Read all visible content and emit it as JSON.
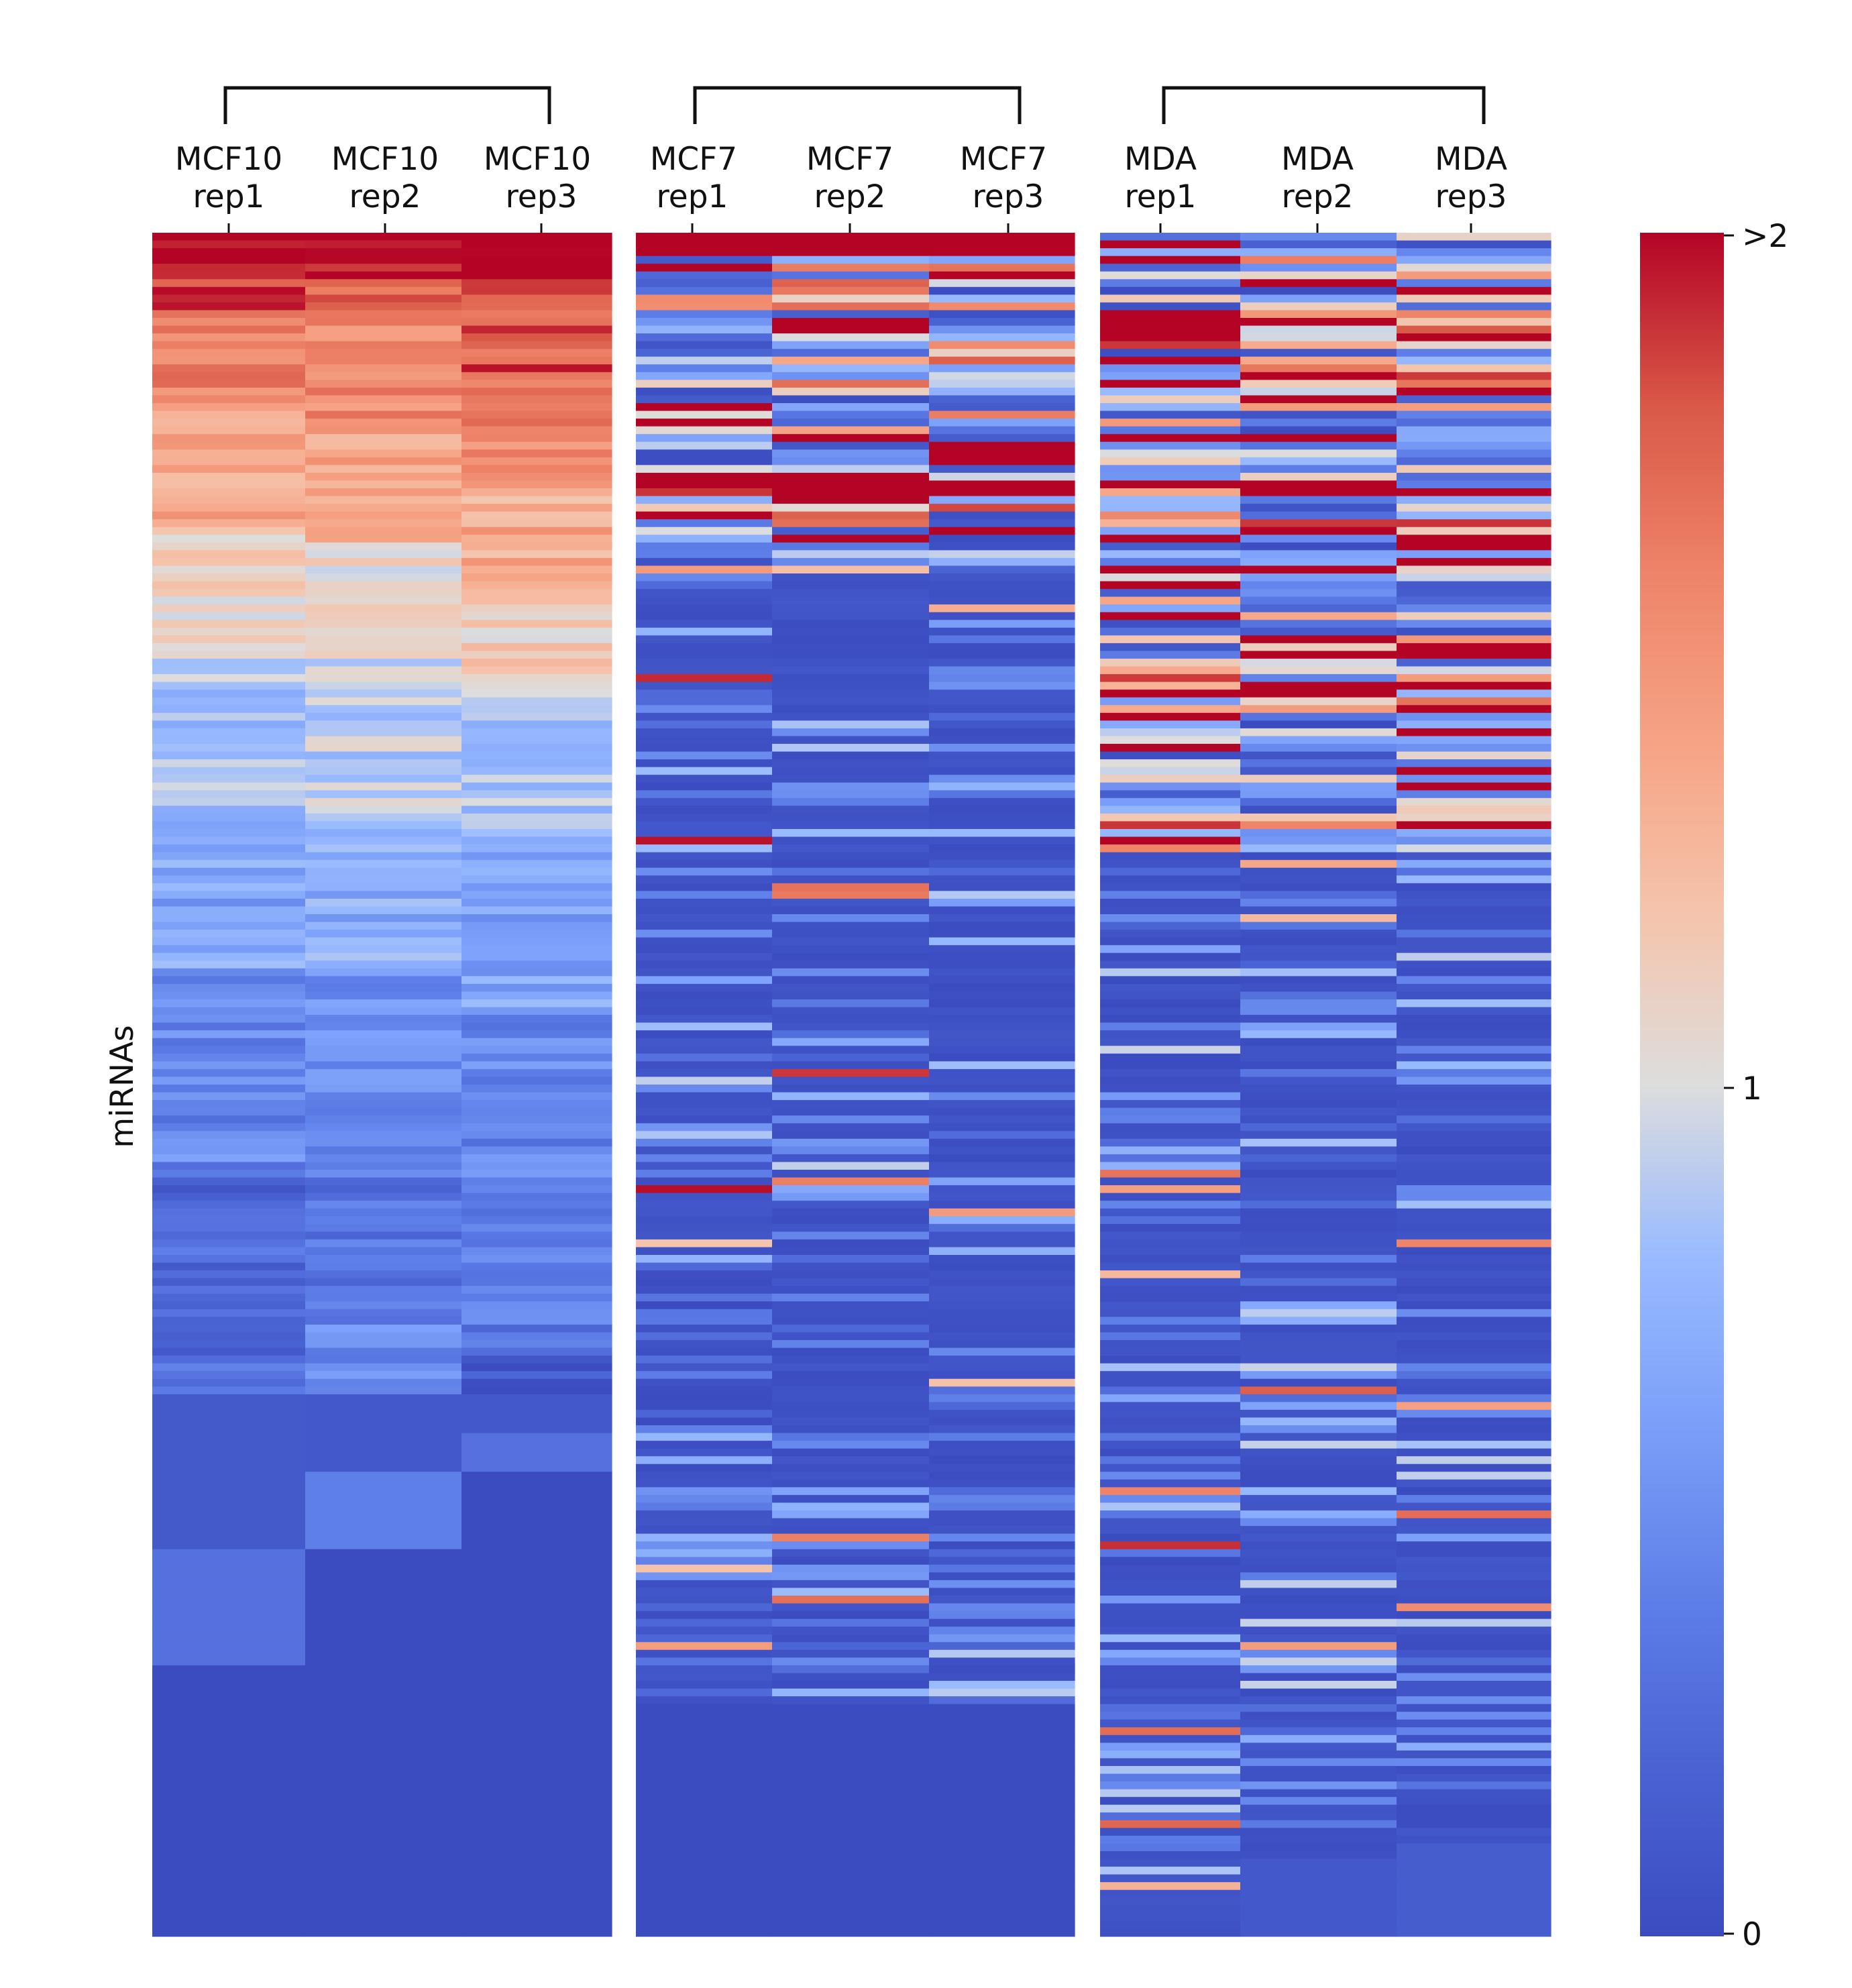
{
  "chart_data": {
    "type": "heatmap",
    "ylabel": "miRNAs",
    "xlabel": "",
    "row_count": 220,
    "groups": [
      {
        "name": "MCF10",
        "columns": [
          {
            "line1": "MCF10",
            "line2": "rep1"
          },
          {
            "line1": "MCF10",
            "line2": "rep2"
          },
          {
            "line1": "MCF10",
            "line2": "rep3"
          }
        ]
      },
      {
        "name": "MCF7",
        "columns": [
          {
            "line1": "MCF7",
            "line2": "rep1"
          },
          {
            "line1": "MCF7",
            "line2": "rep2"
          },
          {
            "line1": "MCF7",
            "line2": "rep3"
          }
        ]
      },
      {
        "name": "MDA",
        "columns": [
          {
            "line1": "MDA",
            "line2": "rep1"
          },
          {
            "line1": "MDA",
            "line2": "rep2"
          },
          {
            "line1": "MDA",
            "line2": "rep3"
          }
        ]
      }
    ],
    "colorbar": {
      "colormap": "coolwarm",
      "vmin": 0,
      "vmax": 2,
      "ticks": [
        {
          "value": 2,
          "label": ">2"
        },
        {
          "value": 1,
          "label": "1"
        },
        {
          "value": 0,
          "label": "0"
        }
      ]
    },
    "value_profiles": {
      "note": "expression values by row index (0 = top), read approximately from the figure; each entry: [row_start, row_end_exclusive, value]",
      "MCF10_rep1": [
        [
          0,
          4,
          2.0
        ],
        [
          4,
          10,
          1.85
        ],
        [
          10,
          22,
          1.6
        ],
        [
          22,
          38,
          1.35
        ],
        [
          38,
          55,
          1.1
        ],
        [
          55,
          75,
          0.85
        ],
        [
          75,
          95,
          0.65
        ],
        [
          95,
          120,
          0.45
        ],
        [
          120,
          150,
          0.25
        ],
        [
          150,
          170,
          0.12
        ],
        [
          170,
          185,
          0.3
        ],
        [
          185,
          220,
          0.0
        ]
      ],
      "MCF10_rep2": [
        [
          0,
          6,
          2.0
        ],
        [
          6,
          12,
          1.8
        ],
        [
          12,
          25,
          1.55
        ],
        [
          25,
          40,
          1.35
        ],
        [
          40,
          55,
          1.1
        ],
        [
          55,
          75,
          0.9
        ],
        [
          75,
          95,
          0.7
        ],
        [
          95,
          120,
          0.5
        ],
        [
          120,
          140,
          0.35
        ],
        [
          140,
          150,
          0.45
        ],
        [
          150,
          160,
          0.1
        ],
        [
          160,
          170,
          0.4
        ],
        [
          170,
          220,
          0.0
        ]
      ],
      "MCF10_rep3": [
        [
          0,
          6,
          2.0
        ],
        [
          6,
          18,
          1.8
        ],
        [
          18,
          32,
          1.55
        ],
        [
          32,
          45,
          1.35
        ],
        [
          45,
          60,
          1.15
        ],
        [
          60,
          80,
          0.85
        ],
        [
          80,
          100,
          0.65
        ],
        [
          100,
          125,
          0.45
        ],
        [
          125,
          145,
          0.35
        ],
        [
          145,
          155,
          0.1
        ],
        [
          155,
          160,
          0.3
        ],
        [
          160,
          220,
          0.0
        ]
      ],
      "MCF7_rep1": [
        [
          0,
          2,
          2.0
        ],
        [
          2,
          40,
          "mixed"
        ],
        [
          40,
          190,
          "mostly_low"
        ],
        [
          190,
          220,
          0.0
        ]
      ],
      "MCF7_rep2": [
        [
          0,
          2,
          2.0
        ],
        [
          2,
          40,
          "mixed"
        ],
        [
          40,
          190,
          "mostly_low"
        ],
        [
          190,
          220,
          0.0
        ]
      ],
      "MCF7_rep3": [
        [
          0,
          2,
          2.0
        ],
        [
          2,
          40,
          "mixed"
        ],
        [
          40,
          190,
          "mostly_low"
        ],
        [
          190,
          220,
          0.0
        ]
      ],
      "MDA_rep1": [
        [
          0,
          80,
          "mixed"
        ],
        [
          80,
          220,
          "mostly_low"
        ]
      ],
      "MDA_rep2": [
        [
          0,
          80,
          "mixed"
        ],
        [
          80,
          215,
          "mostly_low"
        ],
        [
          210,
          220,
          0.1
        ]
      ],
      "MDA_rep3": [
        [
          0,
          80,
          "mixed"
        ],
        [
          80,
          215,
          "mostly_low"
        ],
        [
          208,
          220,
          0.15
        ]
      ]
    },
    "colors": {
      "low": "#3b4cc0",
      "mid": "#dddddd",
      "high": "#b40426"
    }
  }
}
